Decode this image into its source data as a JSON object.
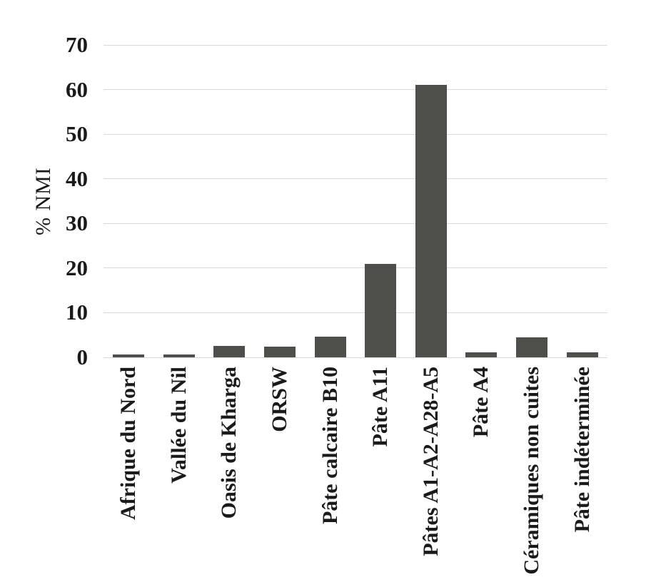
{
  "chart_data": {
    "type": "bar",
    "title": "",
    "xlabel": "",
    "ylabel": "% NMI",
    "categories": [
      "Afrique du Nord",
      "Vallée du Nil",
      "Oasis de Kharga",
      "ORSW",
      "Pâte calcaire B10",
      "Pâte A11",
      "Pâtes A1-A2-A28-A5",
      "Pâte A4",
      "Céramiques non cuites",
      "Pâte indéterminée"
    ],
    "values": [
      0.6,
      0.6,
      2.5,
      2.4,
      4.6,
      21,
      61,
      1.2,
      4.5,
      1.1
    ],
    "ylim": [
      0,
      70
    ],
    "yticks": [
      0,
      10,
      20,
      30,
      40,
      50,
      60,
      70
    ],
    "grid": "horizontal",
    "legend_position": "none",
    "bar_color": "#4e4e4b",
    "gridline_color": "#d9d9d9",
    "text_color": "#1a1a1a"
  }
}
